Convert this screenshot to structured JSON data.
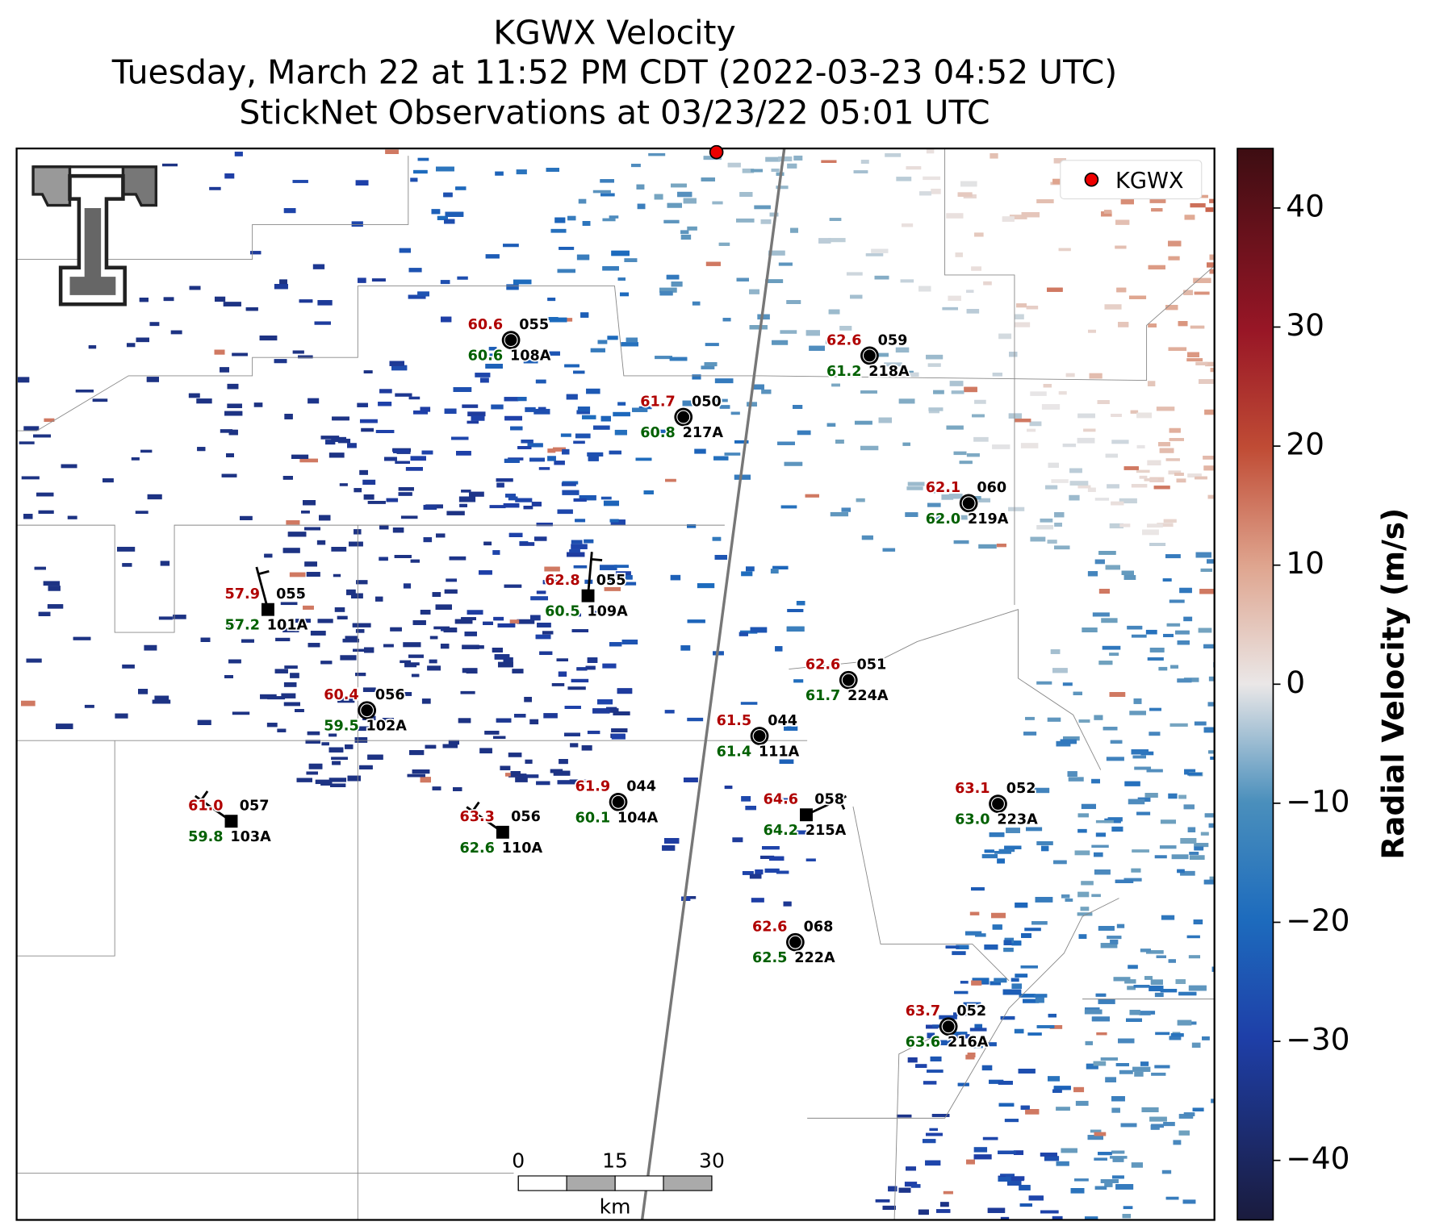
{
  "title_lines": [
    "KGWX Velocity",
    "Tuesday, March 22 at 11:52 PM CDT (2022-03-23 04:52 UTC)",
    "StickNet Observations at 03/23/22 05:01 UTC"
  ],
  "legend": {
    "label": "KGWX"
  },
  "colorbar": {
    "label": "Radial Velocity (m/s)",
    "lim": [
      -45,
      45
    ],
    "ticks": [
      40,
      30,
      20,
      10,
      0,
      {
        "value": -10,
        "label": "−10"
      },
      {
        "value": -20,
        "label": "−20"
      },
      {
        "value": -30,
        "label": "−30"
      },
      {
        "value": -40,
        "label": "−40"
      }
    ]
  },
  "scale_bar": {
    "ticks": [
      0,
      15,
      30
    ],
    "unit": "km"
  },
  "stations": [
    {
      "id": "108A",
      "temperature": "60.6",
      "code": "055",
      "dewpoint": "60.6"
    },
    {
      "id": "218A",
      "temperature": "62.6",
      "code": "059",
      "dewpoint": "61.2"
    },
    {
      "id": "217A",
      "temperature": "61.7",
      "code": "050",
      "dewpoint": "60.8"
    },
    {
      "id": "219A",
      "temperature": "62.1",
      "code": "060",
      "dewpoint": "62.0"
    },
    {
      "id": "109A",
      "temperature": "62.8",
      "code": "055",
      "dewpoint": "60.5"
    },
    {
      "id": "101A",
      "temperature": "57.9",
      "code": "055",
      "dewpoint": "57.2"
    },
    {
      "id": "224A",
      "temperature": "62.6",
      "code": "051",
      "dewpoint": "61.7"
    },
    {
      "id": "102A",
      "temperature": "60.4",
      "code": "056",
      "dewpoint": "59.5"
    },
    {
      "id": "111A",
      "temperature": "61.5",
      "code": "044",
      "dewpoint": "61.4"
    },
    {
      "id": "104A",
      "temperature": "61.9",
      "code": "044",
      "dewpoint": "60.1"
    },
    {
      "id": "223A",
      "temperature": "63.1",
      "code": "052",
      "dewpoint": "63.0"
    },
    {
      "id": "215A",
      "temperature": "64.6",
      "code": "058",
      "dewpoint": "64.2"
    },
    {
      "id": "103A",
      "temperature": "61.0",
      "code": "057",
      "dewpoint": "59.8"
    },
    {
      "id": "110A",
      "temperature": "63.3",
      "code": "056",
      "dewpoint": "62.6"
    },
    {
      "id": "222A",
      "temperature": "62.6",
      "code": "068",
      "dewpoint": "62.5"
    },
    {
      "id": "216A",
      "temperature": "63.7",
      "code": "052",
      "dewpoint": "63.6"
    }
  ]
}
